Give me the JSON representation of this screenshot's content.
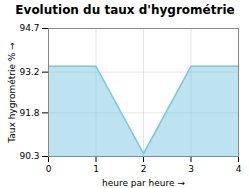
{
  "chart_data": {
    "type": "area",
    "title": "Evolution du taux d'hygrométrie",
    "xlabel": "heure par heure",
    "ylabel": "Taux hygrométrie %",
    "x": [
      0,
      1,
      2,
      3,
      4
    ],
    "values": [
      93.4,
      93.4,
      90.4,
      93.4,
      93.4
    ],
    "color": "#7ac8e0",
    "xlim": [
      0,
      4
    ],
    "ylim": [
      90.3,
      94.7
    ],
    "xticks": [
      0,
      1,
      2,
      3,
      4
    ],
    "yticks": [
      90.3,
      91.8,
      93.2,
      94.7
    ],
    "grid": true
  }
}
